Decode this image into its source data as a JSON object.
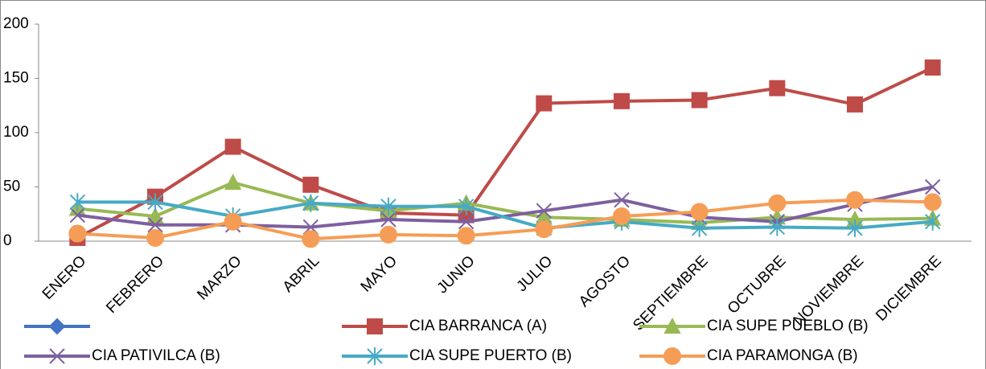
{
  "chart_data": {
    "type": "line",
    "categories": [
      "ENERO",
      "FEBRERO",
      "MARZO",
      "ABRIL",
      "MAYO",
      "JUNIO",
      "JULIO",
      "AGOSTO",
      "SEPTIEMBRE",
      "OCTUBRE",
      "NOVIEMBRE",
      "DICIEMBRE"
    ],
    "ylim": [
      0,
      200
    ],
    "yticks": [
      0,
      50,
      100,
      150,
      200
    ],
    "grid": false,
    "legend": "bottom",
    "series": [
      {
        "color": "#4472c4",
        "marker": "diamond",
        "values": [
          null,
          null,
          null,
          null,
          null,
          null,
          null,
          null,
          null,
          null,
          null,
          null
        ]
      },
      {
        "name": "CIA BARRANCA (A)",
        "color": "#be4b48",
        "marker": "square",
        "values": [
          3,
          41,
          87,
          52,
          26,
          24,
          127,
          129,
          130,
          141,
          126,
          160
        ]
      },
      {
        "name": "CIA SUPE PUEBLO (B)",
        "color": "#98b954",
        "marker": "triangle",
        "values": [
          30,
          23,
          54,
          35,
          28,
          35,
          22,
          20,
          17,
          22,
          20,
          21
        ]
      },
      {
        "name": "CIA PATIVILCA (B)",
        "color": "#7d60a0",
        "marker": "cross",
        "values": [
          24,
          15,
          15,
          13,
          20,
          18,
          28,
          38,
          22,
          18,
          34,
          50
        ]
      },
      {
        "name": "CIA SUPE PUERTO (B)",
        "color": "#46aac5",
        "marker": "star",
        "values": [
          36,
          36,
          23,
          35,
          32,
          32,
          12,
          18,
          12,
          13,
          12,
          18
        ]
      },
      {
        "name": "CIA PARAMONGA (B)",
        "color": "#f59d56",
        "marker": "circle",
        "values": [
          7,
          3,
          18,
          2,
          6,
          5,
          11,
          23,
          27,
          35,
          38,
          36
        ]
      }
    ]
  }
}
